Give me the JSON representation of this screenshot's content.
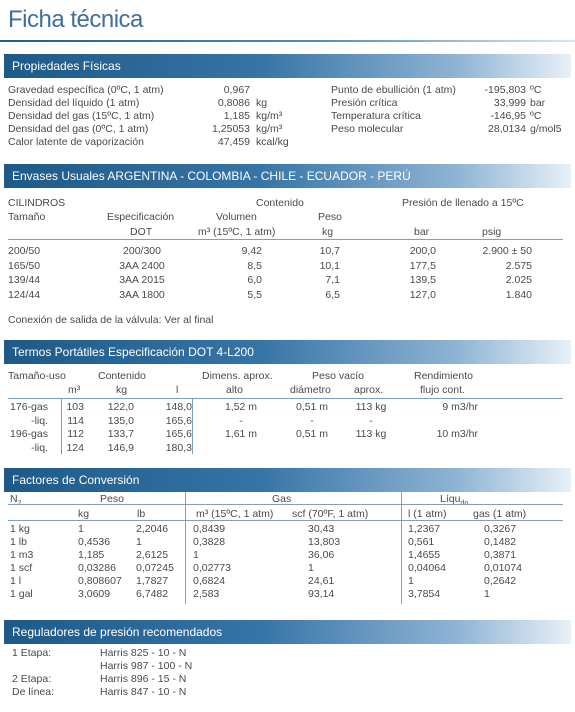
{
  "title": "Ficha técnica",
  "physical": {
    "header": "Propiedades Físicas",
    "left": [
      {
        "label": "Gravedad específica (0ºC, 1 atm)",
        "value": "0,967",
        "unit": ""
      },
      {
        "label": "Densidad del líquido (1 atm)",
        "value": "0,8086",
        "unit": "kg"
      },
      {
        "label": "Densidad del gas (15ºC, 1 atm)",
        "value": "1,185",
        "unit": "kg/m³"
      },
      {
        "label": "Densidad del gas (0ºC, 1 atm)",
        "value": "1,25053",
        "unit": "kg/m³"
      },
      {
        "label": "Calor latente de vaporización",
        "value": "47,459",
        "unit": "kcal/kg"
      }
    ],
    "right": [
      {
        "label": "Punto de ebullición (1 atm)",
        "value": "-195,803",
        "unit": "ºC"
      },
      {
        "label": "Presión crítica",
        "value": "33,999",
        "unit": "bar"
      },
      {
        "label": "Temperatura crítica",
        "value": "-146,95",
        "unit": "ºC"
      },
      {
        "label": "Peso molecular",
        "value": "28,0134",
        "unit": "g/mol5"
      }
    ]
  },
  "containers": {
    "header": "Envases Usuales ARGENTINA - COLOMBIA - CHILE - ECUADOR - PERÚ",
    "h": {
      "cilindros": "CILINDROS",
      "contenido": "Contenido",
      "presion": "Presión de llenado a 15ºC",
      "tamano": "Tamaño",
      "especificacion": "Especificación",
      "volumen": "Volumen",
      "peso": "Peso",
      "dot": "DOT",
      "m3": "m³ (15ºC, 1 atm)",
      "kg": "kg",
      "bar": "bar",
      "psig": "psig"
    },
    "rows": [
      [
        "200/50",
        "200/300",
        "9,42",
        "10,7",
        "200,0",
        "2.900 ± 50"
      ],
      [
        "165/50",
        "3AA 2400",
        "8,5",
        "10,1",
        "177,5",
        "2.575"
      ],
      [
        "139/44",
        "3AA 2015",
        "6,0",
        "7,1",
        "139,5",
        "2.025"
      ],
      [
        "124/44",
        "3AA 1800",
        "5,5",
        "6,5",
        "127,0",
        "1.840"
      ]
    ],
    "note": "Conexión de salida de la válvula: Ver al final"
  },
  "thermos": {
    "header": "Termos Portátiles Especificación DOT 4-L200",
    "h": {
      "tamano": "Tamaño-uso",
      "contenido": "Contenido",
      "dimens": "Dimens. aprox.",
      "pesovacio": "Peso vacío",
      "rend": "Rendimiento",
      "m3": "m³",
      "kg": "kg",
      "l": "l",
      "alto": "alto",
      "diametro": "diámetro",
      "aprox": "aprox.",
      "flujo": "flujo cont."
    },
    "rows": [
      [
        "176-gas",
        "103",
        "122,0",
        "148,0",
        "1,52 m",
        "0,51 m",
        "113 kg",
        "9 m3/hr"
      ],
      [
        "-liq.",
        "114",
        "135,0",
        "165,6",
        "-",
        "-",
        "-",
        ""
      ],
      [
        "196-gas",
        "112",
        "133,7",
        "165,6",
        "1,61 m",
        "0,51 m",
        "113 kg",
        "10 m3/hr"
      ],
      [
        "-liq.",
        "124",
        "146,9",
        "180,3",
        "",
        "",
        "",
        ""
      ]
    ]
  },
  "factors": {
    "header": "Factores de Conversión",
    "h": {
      "n2": "N",
      "n2sub": "2",
      "peso": "Peso",
      "gas": "Gas",
      "liquido": "Líqu",
      "liquidosub": "do",
      "kg": "kg",
      "lb": "lb",
      "m3": "m³ (15ºC, 1 atm)",
      "scf": "scf (70ºF, 1 atm)",
      "l": "l (1 atm)",
      "gasl": "gas (1 atm)"
    },
    "rows": [
      [
        "1 kg",
        "1",
        "2,2046",
        "0,8439",
        "30,43",
        "1,2367",
        "0,3267"
      ],
      [
        "1 lb",
        "0,4536",
        "1",
        "0,3828",
        "13,803",
        "0,561",
        "0,1482"
      ],
      [
        "1 m3",
        "1,185",
        "2,6125",
        "1",
        "36,06",
        "1,4655",
        "0,3871"
      ],
      [
        "1 scf",
        "0,03286",
        "0,07245",
        "0,02773",
        "1",
        "0,04064",
        "0,01074"
      ],
      [
        "1 l",
        "0,808607",
        "1,7827",
        "0,6824",
        "24,61",
        "1",
        "0,2642"
      ],
      [
        "1 gal",
        "3,0609",
        "6,7482",
        "2,583",
        "93,14",
        "3,7854",
        "1"
      ]
    ]
  },
  "regulators": {
    "header": "Reguladores de presión recomendados",
    "rows": [
      [
        "1 Etapa:",
        "Harris 825 - 10 - N"
      ],
      [
        "",
        "Harris 987 - 100 - N"
      ],
      [
        "2 Etapa:",
        "Harris 896 - 15 - N"
      ],
      [
        "De línea:",
        "Harris 847 - 10 - N"
      ]
    ]
  }
}
